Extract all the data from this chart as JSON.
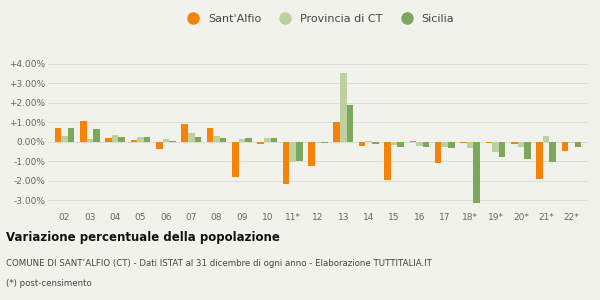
{
  "categories": [
    "02",
    "03",
    "04",
    "05",
    "06",
    "07",
    "08",
    "09",
    "10",
    "11*",
    "12",
    "13",
    "14",
    "15",
    "16",
    "17",
    "18*",
    "19*",
    "20*",
    "21*",
    "22*"
  ],
  "sant_alfio": [
    0.72,
    1.05,
    0.18,
    0.1,
    -0.35,
    0.93,
    0.68,
    -1.8,
    -0.12,
    -2.15,
    -1.25,
    1.02,
    -0.22,
    -1.95,
    0.02,
    -1.1,
    -0.08,
    -0.05,
    -0.1,
    -1.9,
    -0.45
  ],
  "provincia_ct": [
    0.28,
    0.15,
    0.35,
    0.22,
    0.12,
    0.45,
    0.28,
    0.15,
    0.18,
    -1.05,
    -0.05,
    3.55,
    0.05,
    -0.18,
    -0.22,
    -0.25,
    -0.3,
    -0.55,
    -0.25,
    0.28,
    -0.05
  ],
  "sicilia": [
    0.7,
    0.65,
    0.25,
    0.22,
    0.02,
    0.22,
    0.18,
    0.18,
    0.18,
    -1.0,
    -0.05,
    1.9,
    -0.1,
    -0.25,
    -0.28,
    -0.3,
    -3.15,
    -0.8,
    -0.9,
    -1.05,
    -0.25
  ],
  "color_sant_alfio": "#f5830a",
  "color_provincia": "#bdd09f",
  "color_sicilia": "#7da85b",
  "title": "Variazione percentuale della popolazione",
  "subtitle": "COMUNE DI SANT’ALFIO (CT) - Dati ISTAT al 31 dicembre di ogni anno - Elaborazione TUTTITALIA.IT",
  "footnote": "(*) post-censimento",
  "ylim": [
    -3.5,
    4.5
  ],
  "yticks": [
    -3.0,
    -2.0,
    -1.0,
    0.0,
    1.0,
    2.0,
    3.0,
    4.0
  ],
  "ytick_labels": [
    "-3.00%",
    "-2.00%",
    "-1.00%",
    "0.00%",
    "+1.00%",
    "+2.00%",
    "+3.00%",
    "+4.00%"
  ],
  "bg_color": "#f2f2ed",
  "legend_labels": [
    "Sant'Alfio",
    "Provincia di CT",
    "Sicilia"
  ]
}
